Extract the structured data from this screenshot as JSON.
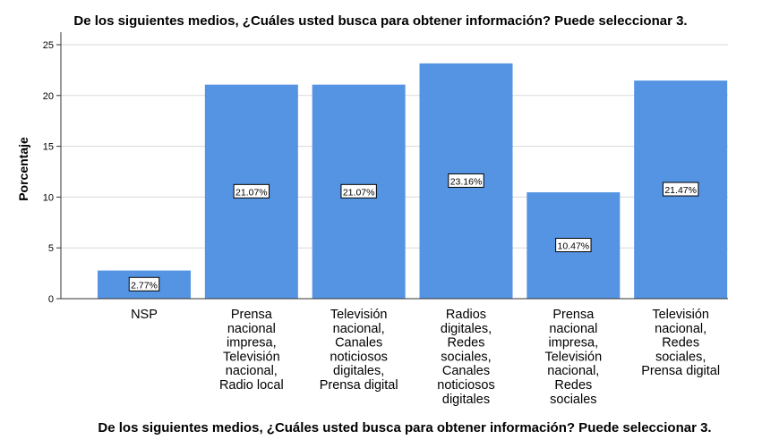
{
  "chart_data": {
    "type": "bar",
    "title": "De los siguientes medios, ¿Cuáles usted busca para obtener información? Puede seleccionar 3.",
    "xlabel": "De los siguientes medios, ¿Cuáles usted busca para obtener información? Puede seleccionar 3.",
    "ylabel": "Porcentaje",
    "ylim": [
      0,
      25
    ],
    "yticks": [
      "0",
      "5",
      "10",
      "15",
      "20",
      "25"
    ],
    "grid": true,
    "bar_color": "#5594e3",
    "categories": [
      "NSP",
      "Prensa nacional impresa, Televisión nacional, Radio local",
      "Televisión nacional, Canales noticiosos digitales, Prensa digital",
      "Radios digitales, Redes sociales, Canales noticiosos digitales",
      "Prensa nacional impresa, Televisión nacional, Redes sociales",
      "Televisión nacional, Redes sociales, Prensa digital"
    ],
    "category_lines": [
      [
        "NSP"
      ],
      [
        "Prensa",
        "nacional",
        "impresa,",
        "Televisión",
        "nacional,",
        "Radio local"
      ],
      [
        "Televisión",
        "nacional,",
        "Canales",
        "noticiosos",
        "digitales,",
        "Prensa digital"
      ],
      [
        "Radios",
        "digitales,",
        "Redes",
        "sociales,",
        "Canales",
        "noticiosos",
        "digitales"
      ],
      [
        "Prensa",
        "nacional",
        "impresa,",
        "Televisión",
        "nacional,",
        "Redes",
        "sociales"
      ],
      [
        "Televisión",
        "nacional,",
        "Redes",
        "sociales,",
        "Prensa digital"
      ]
    ],
    "values": [
      2.77,
      21.07,
      21.07,
      23.16,
      10.47,
      21.47
    ],
    "data_labels": [
      "2.77%",
      "21.07%",
      "21.07%",
      "23.16%",
      "10.47%",
      "21.47%"
    ]
  }
}
